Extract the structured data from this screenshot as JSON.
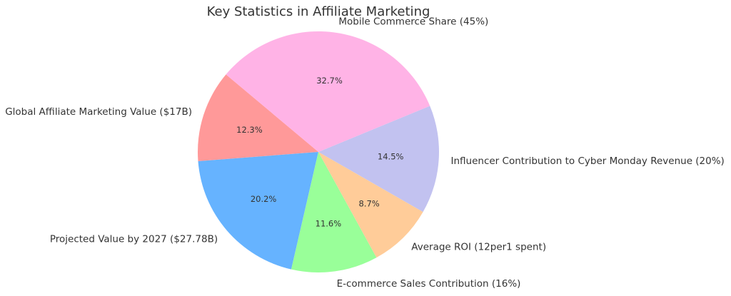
{
  "chart_data": {
    "type": "pie",
    "title": "Key Statistics in Affiliate Marketing",
    "labels": [
      "Global Affiliate Marketing Value ($17B)",
      "Projected Value by 2027 ($27.78B)",
      "E-commerce Sales Contribution (16%)",
      "Average ROI (12per1 spent)",
      "Influencer Contribution to Cyber Monday Revenue (20%)",
      "Mobile Commerce Share (45%)"
    ],
    "values": [
      17,
      27.78,
      16,
      12,
      20,
      45
    ],
    "percent_labels": [
      "12.3%",
      "20.2%",
      "11.6%",
      "8.7%",
      "14.5%",
      "32.7%"
    ],
    "colors": [
      "#ff9999",
      "#66b3ff",
      "#99ff99",
      "#ffcc99",
      "#c2c2f0",
      "#ffb3e6"
    ],
    "start_angle_deg": 140,
    "direction": "counterclockwise",
    "legend": "none"
  }
}
